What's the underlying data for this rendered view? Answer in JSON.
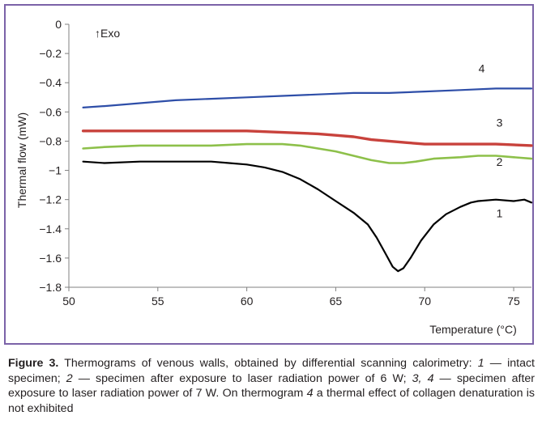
{
  "chart_data": {
    "type": "line",
    "xlabel": "Temperature (°C)",
    "ylabel": "Thermal flow (mW)",
    "annotation": "↑Exo",
    "xlim": [
      50,
      76
    ],
    "ylim": [
      -1.8,
      0
    ],
    "x_ticks": [
      50,
      55,
      60,
      65,
      70,
      75
    ],
    "y_ticks": [
      0,
      -0.2,
      -0.4,
      -0.6,
      -0.8,
      -1,
      -1.2,
      -1.4,
      -1.6,
      -1.8
    ],
    "x_tick_labels": [
      "50",
      "55",
      "60",
      "65",
      "70",
      "75"
    ],
    "y_tick_labels": [
      "0",
      "−0.2",
      "−0.4",
      "−0.6",
      "−0.8",
      "−1",
      "−1.2",
      "−1.4",
      "−1.6",
      "−1.8"
    ],
    "grid": false,
    "series": [
      {
        "name": "1",
        "color": "#000000",
        "points": [
          [
            50.8,
            -0.94
          ],
          [
            52,
            -0.95
          ],
          [
            54,
            -0.94
          ],
          [
            56,
            -0.94
          ],
          [
            58,
            -0.94
          ],
          [
            59,
            -0.95
          ],
          [
            60,
            -0.96
          ],
          [
            61,
            -0.98
          ],
          [
            62,
            -1.01
          ],
          [
            63,
            -1.06
          ],
          [
            64,
            -1.13
          ],
          [
            65,
            -1.21
          ],
          [
            66,
            -1.29
          ],
          [
            66.8,
            -1.37
          ],
          [
            67.3,
            -1.46
          ],
          [
            67.8,
            -1.57
          ],
          [
            68.2,
            -1.66
          ],
          [
            68.5,
            -1.69
          ],
          [
            68.8,
            -1.67
          ],
          [
            69.2,
            -1.6
          ],
          [
            69.8,
            -1.48
          ],
          [
            70.5,
            -1.37
          ],
          [
            71.2,
            -1.3
          ],
          [
            72,
            -1.25
          ],
          [
            72.6,
            -1.22
          ],
          [
            73,
            -1.21
          ],
          [
            74,
            -1.2
          ],
          [
            75,
            -1.21
          ],
          [
            75.6,
            -1.2
          ],
          [
            76,
            -1.22
          ]
        ]
      },
      {
        "name": "2",
        "color": "#8dc04a",
        "points": [
          [
            50.8,
            -0.85
          ],
          [
            52,
            -0.84
          ],
          [
            54,
            -0.83
          ],
          [
            56,
            -0.83
          ],
          [
            58,
            -0.83
          ],
          [
            60,
            -0.82
          ],
          [
            62,
            -0.82
          ],
          [
            63,
            -0.83
          ],
          [
            64,
            -0.85
          ],
          [
            65,
            -0.87
          ],
          [
            66,
            -0.9
          ],
          [
            67,
            -0.93
          ],
          [
            68,
            -0.95
          ],
          [
            68.8,
            -0.95
          ],
          [
            69.5,
            -0.94
          ],
          [
            70.5,
            -0.92
          ],
          [
            72,
            -0.91
          ],
          [
            73,
            -0.9
          ],
          [
            74,
            -0.9
          ],
          [
            75,
            -0.91
          ],
          [
            76,
            -0.92
          ]
        ]
      },
      {
        "name": "3",
        "color": "#c8423c",
        "points": [
          [
            50.8,
            -0.73
          ],
          [
            52,
            -0.73
          ],
          [
            54,
            -0.73
          ],
          [
            56,
            -0.73
          ],
          [
            58,
            -0.73
          ],
          [
            60,
            -0.73
          ],
          [
            62,
            -0.74
          ],
          [
            64,
            -0.75
          ],
          [
            65,
            -0.76
          ],
          [
            66,
            -0.77
          ],
          [
            67,
            -0.79
          ],
          [
            68,
            -0.8
          ],
          [
            69,
            -0.81
          ],
          [
            70,
            -0.82
          ],
          [
            72,
            -0.82
          ],
          [
            74,
            -0.82
          ],
          [
            76,
            -0.83
          ]
        ]
      },
      {
        "name": "4",
        "color": "#2e4ea8",
        "points": [
          [
            50.8,
            -0.57
          ],
          [
            52,
            -0.56
          ],
          [
            54,
            -0.54
          ],
          [
            56,
            -0.52
          ],
          [
            58,
            -0.51
          ],
          [
            60,
            -0.5
          ],
          [
            62,
            -0.49
          ],
          [
            64,
            -0.48
          ],
          [
            66,
            -0.47
          ],
          [
            68,
            -0.47
          ],
          [
            70,
            -0.46
          ],
          [
            72,
            -0.45
          ],
          [
            74,
            -0.44
          ],
          [
            76,
            -0.44
          ]
        ]
      }
    ]
  },
  "caption": {
    "label": "Figure 3.",
    "p1": " Thermograms of venous walls, obtained by differential scanning calorimetry: ",
    "n1": "1",
    "p2": " — intact specimen; ",
    "n2": "2",
    "p3": " — specimen after exposure to laser radiation power of 6 W; ",
    "n3": "3, 4",
    "p4": " — specimen after exposure to laser radiation power of 7 W. On thermogram ",
    "n4": "4",
    "p5": " a thermal effect of collagen denaturation is not exhibited"
  }
}
